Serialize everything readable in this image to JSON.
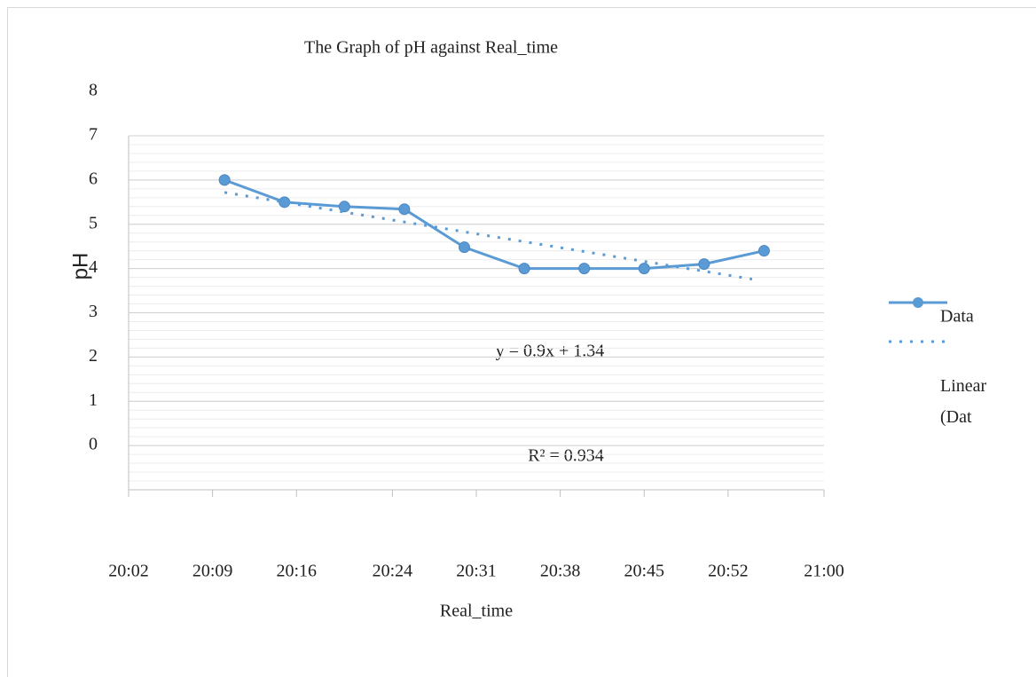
{
  "chart_data": {
    "type": "line",
    "title": "The Graph of pH against Real_time",
    "x_label": "Real_time",
    "y_label": "pH",
    "x": [
      "20:10",
      "20:15",
      "20:20",
      "20:25",
      "20:30",
      "20:35",
      "20:40",
      "20:45",
      "20:50",
      "20:55"
    ],
    "series": [
      {
        "name": "Data",
        "color": "#5b9bd5",
        "values": [
          6,
          5.5,
          5.4,
          5.34,
          4.48,
          4,
          4,
          4,
          4.1,
          4.4
        ]
      },
      {
        "name": "Linear (Dat",
        "color": "#5b9bd5",
        "dashed": true,
        "x": [
          "20:10",
          "20:54"
        ],
        "values": [
          5.72,
          3.76
        ]
      }
    ],
    "annotations": [
      "y = 0.9x + 1.34",
      "R² = 0.934"
    ],
    "xlim": [
      "20:02",
      "21:00"
    ],
    "xticks": [
      "20:02",
      "20:09",
      "20:16",
      "20:24",
      "20:31",
      "20:38",
      "20:45",
      "20:52",
      "21:00"
    ],
    "ylim": [
      -1,
      7
    ],
    "yticks": [
      8,
      7,
      6,
      5,
      4,
      3,
      2,
      1,
      0
    ],
    "grid": true,
    "legend": "right"
  }
}
